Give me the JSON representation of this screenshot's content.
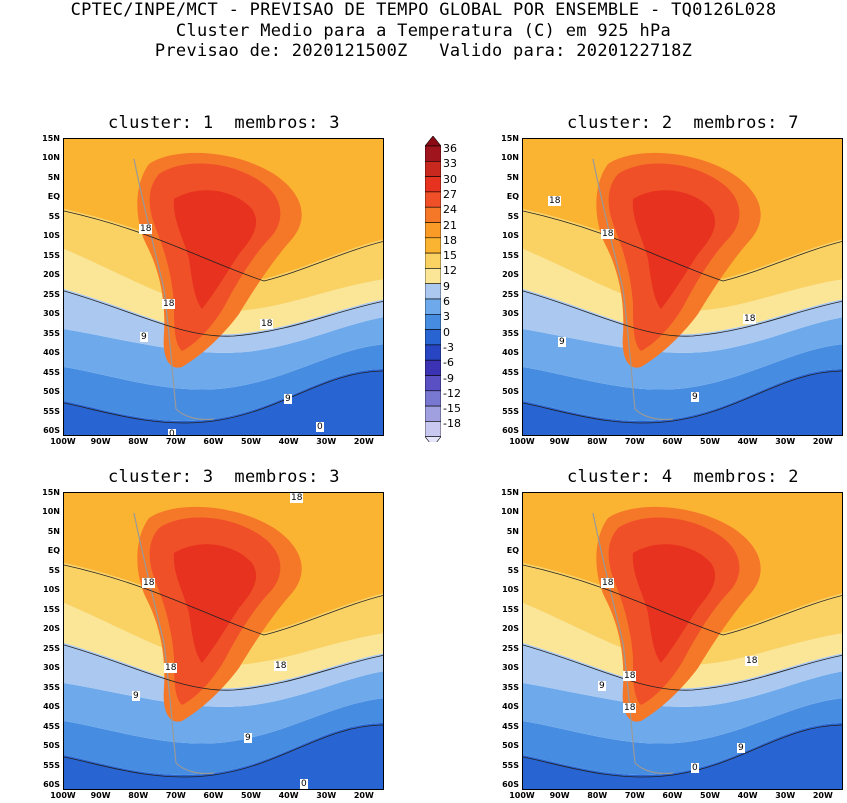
{
  "header": {
    "line1": "CPTEC/INPE/MCT - PREVISAO DE TEMPO GLOBAL POR ENSEMBLE - TQ0126L028",
    "line2": "Cluster Medio para a Temperatura (C) em 925 hPa",
    "line3": "Previsao de: 2020121500Z   Valido para: 2020122718Z"
  },
  "lat_labels": [
    "15N",
    "10N",
    "5N",
    "EQ",
    "5S",
    "10S",
    "15S",
    "20S",
    "25S",
    "30S",
    "35S",
    "40S",
    "45S",
    "50S",
    "55S",
    "60S"
  ],
  "lon_labels": [
    "100W",
    "90W",
    "80W",
    "70W",
    "60W",
    "50W",
    "40W",
    "30W",
    "20W"
  ],
  "legend": {
    "levels": [
      "36",
      "33",
      "30",
      "27",
      "24",
      "21",
      "18",
      "15",
      "12",
      "9",
      "6",
      "3",
      "0",
      "-3",
      "-6",
      "-9",
      "-12",
      "-15",
      "-18"
    ],
    "colors": [
      "#a0141e",
      "#c8281e",
      "#e6321e",
      "#f05028",
      "#f57828",
      "#fa9b28",
      "#fab432",
      "#fad264",
      "#fae696",
      "#aac8f0",
      "#6eaaeb",
      "#468ce1",
      "#2864d2",
      "#2846c3",
      "#3c32b4",
      "#5a50c3",
      "#7878d2",
      "#a0a0e1",
      "#c8c8f0"
    ]
  },
  "panels": [
    {
      "title": "cluster: 1  membros: 3",
      "labels": [
        "18",
        "18",
        "18",
        "9",
        "9",
        "0",
        "0"
      ]
    },
    {
      "title": "cluster: 2  membros: 7",
      "labels": [
        "18",
        "18",
        "18",
        "9",
        "9"
      ]
    },
    {
      "title": "cluster: 3  membros: 3",
      "labels": [
        "18",
        "18",
        "18",
        "18",
        "9",
        "9",
        "0"
      ]
    },
    {
      "title": "cluster: 4  membros: 2",
      "labels": [
        "18",
        "18",
        "18",
        "18",
        "9",
        "9",
        "0"
      ]
    }
  ]
}
